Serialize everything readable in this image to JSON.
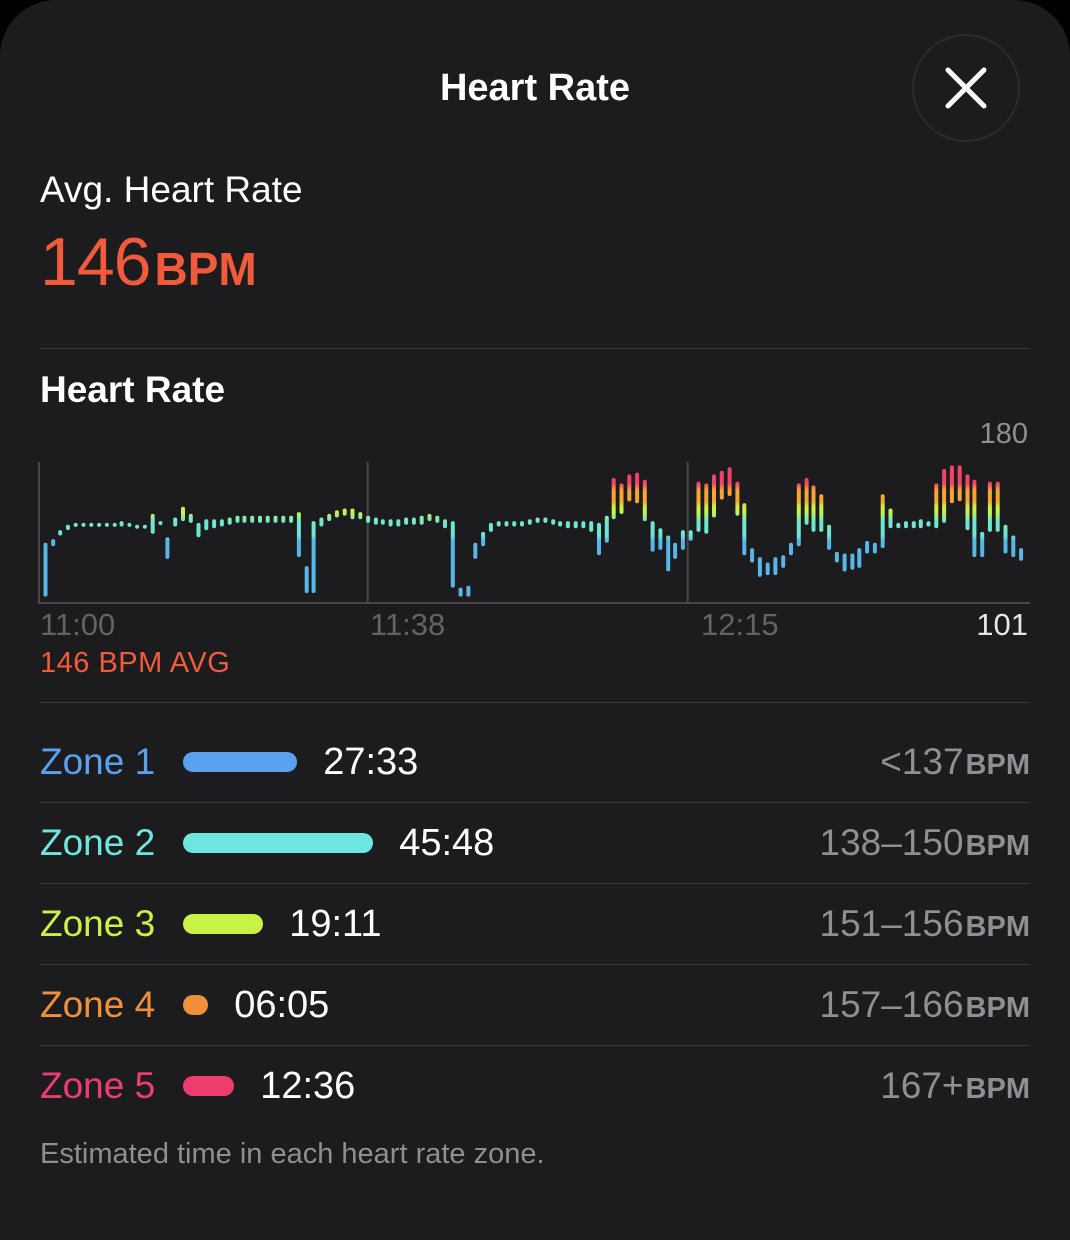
{
  "header": {
    "title": "Heart Rate",
    "close_icon": "close-icon"
  },
  "summary": {
    "label": "Avg. Heart Rate",
    "value": "146",
    "unit": "BPM",
    "color": "#f25a3c"
  },
  "chart_section": {
    "title": "Heart Rate",
    "avg_caption": "146 BPM AVG"
  },
  "chart_data": {
    "type": "range-bar",
    "title": "Heart Rate",
    "y_max_label": "180",
    "y_min_label": "101",
    "ylim": [
      101,
      180
    ],
    "x_ticks": [
      "11:00",
      "11:38",
      "12:15"
    ],
    "x_range_minutes": [
      0,
      114
    ],
    "grid_x_minutes": [
      0,
      38,
      75
    ],
    "zone_colors": {
      "z1": "#58b5e8",
      "z2": "#6ee6d0",
      "z3": "#c8f246",
      "z4": "#f5a636",
      "z5": "#f04466"
    },
    "ranges": [
      [
        0.4,
        104,
        134
      ],
      [
        1.3,
        132,
        136
      ],
      [
        2.1,
        138,
        141
      ],
      [
        3.0,
        141,
        144
      ],
      [
        3.9,
        143,
        145
      ],
      [
        4.8,
        143,
        145
      ],
      [
        5.7,
        143,
        145
      ],
      [
        6.6,
        143,
        145
      ],
      [
        7.5,
        143,
        145
      ],
      [
        8.4,
        143,
        145
      ],
      [
        9.2,
        143,
        146
      ],
      [
        10.1,
        143,
        145
      ],
      [
        11.0,
        142,
        144
      ],
      [
        11.9,
        142,
        144
      ],
      [
        12.8,
        139,
        150
      ],
      [
        13.7,
        144,
        146
      ],
      [
        14.5,
        125,
        137
      ],
      [
        15.4,
        143,
        148
      ],
      [
        16.3,
        146,
        154
      ],
      [
        17.2,
        145,
        150
      ],
      [
        18.1,
        137,
        145
      ],
      [
        19.0,
        141,
        147
      ],
      [
        19.9,
        142,
        147
      ],
      [
        20.8,
        143,
        147
      ],
      [
        21.7,
        144,
        148
      ],
      [
        22.6,
        145,
        149
      ],
      [
        23.4,
        145,
        149
      ],
      [
        24.3,
        145,
        149
      ],
      [
        25.2,
        145,
        149
      ],
      [
        26.1,
        145,
        149
      ],
      [
        27.0,
        145,
        149
      ],
      [
        27.9,
        145,
        149
      ],
      [
        28.8,
        145,
        149
      ],
      [
        29.7,
        126,
        151
      ],
      [
        30.6,
        106,
        121
      ],
      [
        31.4,
        106,
        146
      ],
      [
        32.3,
        143,
        148
      ],
      [
        33.2,
        146,
        150
      ],
      [
        34.1,
        148,
        152
      ],
      [
        35.0,
        149,
        153
      ],
      [
        35.9,
        147,
        153
      ],
      [
        36.8,
        147,
        151
      ],
      [
        37.7,
        145,
        149
      ],
      [
        38.6,
        144,
        148
      ],
      [
        39.4,
        144,
        147
      ],
      [
        40.3,
        143,
        147
      ],
      [
        41.2,
        143,
        147
      ],
      [
        42.1,
        144,
        148
      ],
      [
        43.0,
        144,
        148
      ],
      [
        43.9,
        144,
        149
      ],
      [
        44.8,
        146,
        150
      ],
      [
        45.7,
        145,
        149
      ],
      [
        46.6,
        142,
        147
      ],
      [
        47.5,
        109,
        146
      ],
      [
        48.4,
        104,
        109
      ],
      [
        49.3,
        104,
        110
      ],
      [
        50.1,
        125,
        134
      ],
      [
        51.0,
        132,
        140
      ],
      [
        51.9,
        140,
        145
      ],
      [
        52.8,
        143,
        146
      ],
      [
        53.7,
        143,
        146
      ],
      [
        54.6,
        143,
        146
      ],
      [
        55.5,
        143,
        146
      ],
      [
        56.4,
        144,
        147
      ],
      [
        57.3,
        145,
        148
      ],
      [
        58.2,
        145,
        148
      ],
      [
        59.1,
        144,
        147
      ],
      [
        59.9,
        143,
        146
      ],
      [
        60.8,
        142,
        146
      ],
      [
        61.7,
        142,
        146
      ],
      [
        62.6,
        142,
        146
      ],
      [
        63.5,
        140,
        146
      ],
      [
        64.4,
        127,
        145
      ],
      [
        65.3,
        134,
        149
      ],
      [
        66.1,
        147,
        170
      ],
      [
        67.0,
        150,
        167
      ],
      [
        67.9,
        157,
        172
      ],
      [
        68.8,
        156,
        173
      ],
      [
        69.7,
        146,
        169
      ],
      [
        70.6,
        129,
        146
      ],
      [
        71.5,
        130,
        142
      ],
      [
        72.4,
        118,
        138
      ],
      [
        73.2,
        125,
        134
      ],
      [
        74.1,
        130,
        141
      ],
      [
        75.0,
        135,
        141
      ],
      [
        75.9,
        140,
        168
      ],
      [
        76.8,
        139,
        167
      ],
      [
        77.7,
        148,
        172
      ],
      [
        78.6,
        158,
        174
      ],
      [
        79.5,
        160,
        176
      ],
      [
        80.4,
        149,
        168
      ],
      [
        81.2,
        127,
        156
      ],
      [
        82.1,
        123,
        131
      ],
      [
        83.0,
        115,
        126
      ],
      [
        83.9,
        116,
        123
      ],
      [
        84.8,
        116,
        126
      ],
      [
        85.7,
        120,
        127
      ],
      [
        86.6,
        127,
        134
      ],
      [
        87.5,
        132,
        167
      ],
      [
        88.4,
        144,
        170
      ],
      [
        89.2,
        140,
        166
      ],
      [
        90.1,
        140,
        161
      ],
      [
        91.0,
        130,
        144
      ],
      [
        91.9,
        123,
        129
      ],
      [
        92.8,
        118,
        128
      ],
      [
        93.7,
        119,
        128
      ],
      [
        94.5,
        120,
        131
      ],
      [
        95.4,
        128,
        135
      ],
      [
        96.3,
        128,
        134
      ],
      [
        97.2,
        131,
        161
      ],
      [
        98.1,
        142,
        153
      ],
      [
        99.0,
        142,
        145
      ],
      [
        99.9,
        142,
        146
      ],
      [
        100.8,
        142,
        146
      ],
      [
        101.6,
        142,
        147
      ],
      [
        102.5,
        143,
        146
      ],
      [
        103.4,
        142,
        167
      ],
      [
        104.3,
        145,
        175
      ],
      [
        105.2,
        156,
        177
      ],
      [
        106.1,
        157,
        177
      ],
      [
        107.0,
        141,
        172
      ],
      [
        107.8,
        126,
        169
      ],
      [
        108.7,
        126,
        140
      ],
      [
        109.6,
        140,
        168
      ],
      [
        110.5,
        140,
        168
      ],
      [
        111.4,
        128,
        144
      ],
      [
        112.3,
        126,
        138
      ],
      [
        113.2,
        124,
        131
      ]
    ]
  },
  "zones": [
    {
      "name": "Zone 1",
      "time": "27:33",
      "range": "<137",
      "unit": "BPM",
      "color": "#5aa2f0",
      "fraction": 0.6
    },
    {
      "name": "Zone 2",
      "time": "45:48",
      "range": "138–150",
      "unit": "BPM",
      "color": "#6ee6e0",
      "fraction": 1.0
    },
    {
      "name": "Zone 3",
      "time": "19:11",
      "range": "151–156",
      "unit": "BPM",
      "color": "#c8f246",
      "fraction": 0.42
    },
    {
      "name": "Zone 4",
      "time": "06:05",
      "range": "157–166",
      "unit": "BPM",
      "color": "#f0903a",
      "fraction": 0.13
    },
    {
      "name": "Zone 5",
      "time": "12:36",
      "range": "167+",
      "unit": "BPM",
      "color": "#ee3d6c",
      "fraction": 0.27
    }
  ],
  "footnote": "Estimated time in each heart rate zone."
}
